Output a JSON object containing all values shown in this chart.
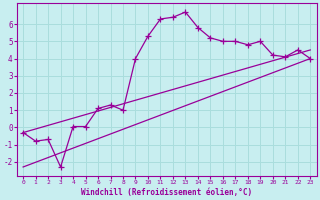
{
  "xlabel": "Windchill (Refroidissement éolien,°C)",
  "bg_color": "#c8eef0",
  "line_color": "#990099",
  "grid_color": "#aadddd",
  "x_data": [
    0,
    1,
    2,
    3,
    4,
    5,
    6,
    7,
    8,
    9,
    10,
    11,
    12,
    13,
    14,
    15,
    16,
    17,
    18,
    19,
    20,
    21,
    22,
    23
  ],
  "y_main": [
    -0.3,
    -0.8,
    -0.7,
    -2.3,
    0.05,
    0.05,
    1.1,
    1.3,
    1.0,
    4.0,
    5.3,
    6.3,
    6.4,
    6.7,
    5.8,
    5.2,
    5.0,
    5.0,
    4.8,
    5.0,
    4.2,
    4.1,
    4.5,
    4.0
  ],
  "line1_x": [
    0,
    23
  ],
  "line1_y": [
    -0.3,
    4.5
  ],
  "line2_x": [
    0,
    23
  ],
  "line2_y": [
    -2.3,
    4.0
  ],
  "xlim": [
    -0.5,
    23.5
  ],
  "ylim": [
    -2.8,
    7.2
  ],
  "yticks": [
    -2,
    -1,
    0,
    1,
    2,
    3,
    4,
    5,
    6
  ],
  "xticks": [
    0,
    1,
    2,
    3,
    4,
    5,
    6,
    7,
    8,
    9,
    10,
    11,
    12,
    13,
    14,
    15,
    16,
    17,
    18,
    19,
    20,
    21,
    22,
    23
  ]
}
